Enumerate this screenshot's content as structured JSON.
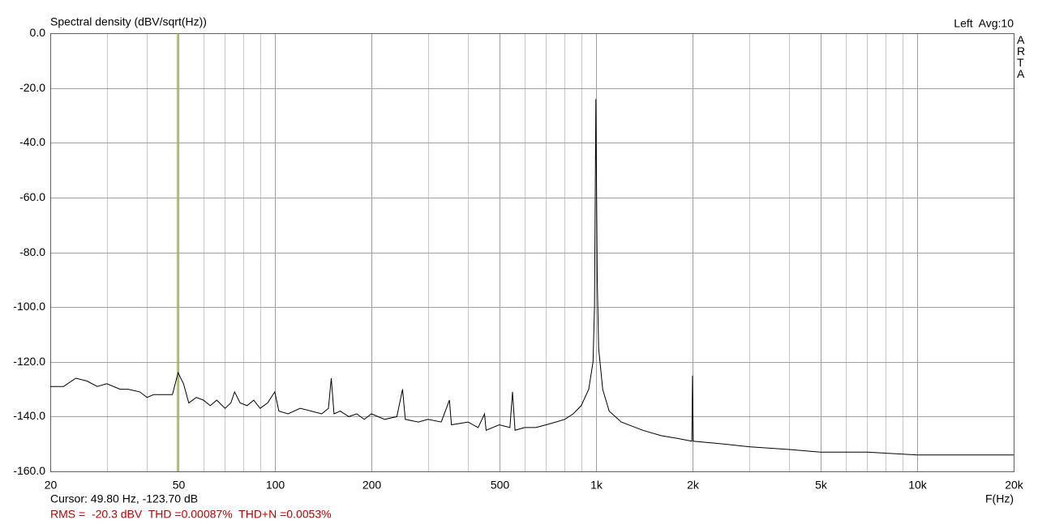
{
  "chart_data": {
    "type": "line",
    "title": "Spectral density (dBV/sqrt(Hz))",
    "header_right": "Left  Avg:10",
    "brand": "ARTA",
    "xlabel": "F(Hz)",
    "log_x": true,
    "grid": true,
    "color": "#000000",
    "cursor": {
      "x": 49.8,
      "label": "Cursor: 49.80 Hz, -123.70 dB",
      "color": "#a8b040"
    },
    "summary": {
      "text": "RMS =  -20.3 dBV  THD =0.00087%  THD+N =0.0053%",
      "color": "#c00000"
    },
    "xlim": [
      20,
      20000
    ],
    "xticks": [
      20,
      50,
      100,
      200,
      500,
      {
        "value": 1000,
        "label": "1k"
      },
      {
        "value": 2000,
        "label": "2k"
      },
      {
        "value": 5000,
        "label": "5k"
      },
      {
        "value": 10000,
        "label": "10k"
      },
      {
        "value": 20000,
        "label": "20k"
      }
    ],
    "xminorticks": [
      30,
      40,
      60,
      70,
      80,
      90,
      300,
      400,
      600,
      700,
      800,
      900,
      3000,
      4000,
      6000,
      7000,
      8000,
      9000
    ],
    "ylim": [
      -160,
      0
    ],
    "yticks": [
      {
        "value": 0,
        "label": "0.0"
      },
      {
        "value": -20,
        "label": "-20.0"
      },
      {
        "value": -40,
        "label": "-40.0"
      },
      {
        "value": -60,
        "label": "-60.0"
      },
      {
        "value": -80,
        "label": "-80.0"
      },
      {
        "value": -100,
        "label": "-100.0"
      },
      {
        "value": -120,
        "label": "-120.0"
      },
      {
        "value": -140,
        "label": "-140.0"
      },
      {
        "value": -160,
        "label": "-160.0"
      }
    ],
    "x": [
      20,
      22,
      24,
      26,
      28,
      30,
      33,
      35,
      38,
      40,
      42,
      45,
      48,
      50,
      52,
      54,
      57,
      60,
      63,
      66,
      70,
      73,
      75,
      78,
      82,
      86,
      90,
      95,
      100,
      103,
      110,
      120,
      130,
      140,
      147,
      150,
      153,
      160,
      170,
      180,
      190,
      200,
      220,
      240,
      250,
      255,
      280,
      300,
      330,
      350,
      355,
      400,
      430,
      450,
      455,
      500,
      540,
      550,
      560,
      600,
      650,
      700,
      750,
      800,
      850,
      900,
      950,
      980,
      990,
      1000,
      1010,
      1020,
      1050,
      1100,
      1200,
      1400,
      1600,
      1800,
      1990,
      2000,
      2010,
      2500,
      3000,
      4000,
      5000,
      7000,
      10000,
      14000,
      20000
    ],
    "values": [
      -129,
      -129,
      -126,
      -127,
      -129,
      -128,
      -130,
      -130,
      -131,
      -133,
      -132,
      -132,
      -132,
      -124,
      -128,
      -135,
      -133,
      -134,
      -136,
      -134,
      -137,
      -135,
      -131,
      -135,
      -136,
      -134,
      -137,
      -135,
      -131,
      -138,
      -139,
      -137,
      -138,
      -139,
      -137,
      -126,
      -139,
      -138,
      -140,
      -139,
      -141,
      -139,
      -141,
      -140,
      -130,
      -141,
      -142,
      -141,
      -142,
      -134,
      -143,
      -142,
      -144,
      -139,
      -145,
      -143,
      -144,
      -131,
      -145,
      -144,
      -144,
      -143,
      -142,
      -141,
      -139,
      -136,
      -130,
      -120,
      -100,
      -24,
      -90,
      -115,
      -130,
      -138,
      -142,
      -145,
      -147,
      -148,
      -149,
      -125,
      -149,
      -150,
      -151,
      -152,
      -153,
      -153,
      -154,
      -154,
      -154
    ]
  }
}
